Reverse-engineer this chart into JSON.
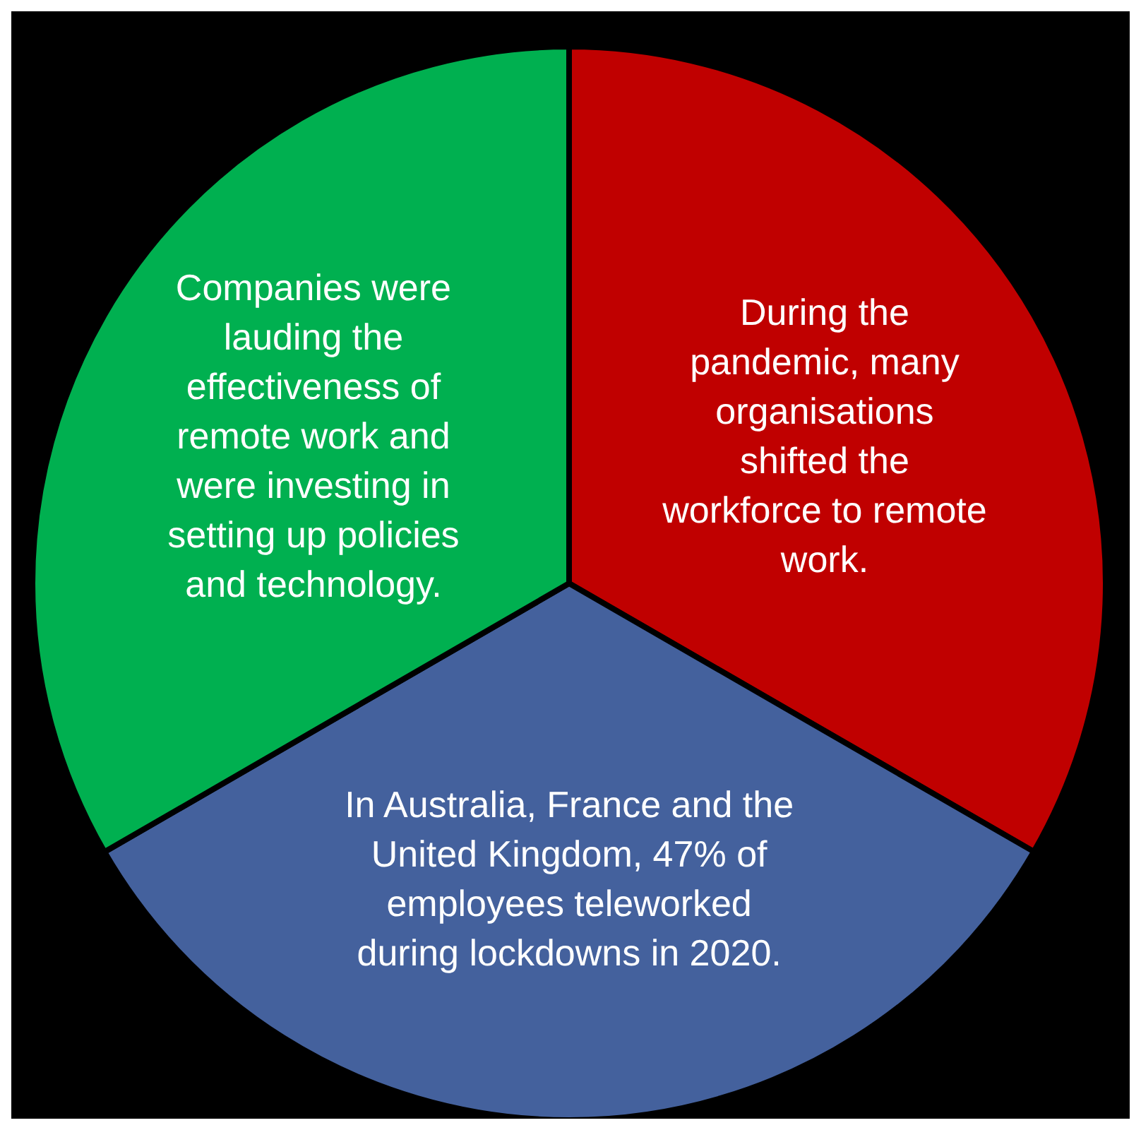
{
  "chart_data": {
    "type": "pie",
    "categories": [
      "During the pandemic, many organisations shifted the workforce to remote work.",
      "In Australia, France and the United Kingdom, 47% of employees teleworked during lockdowns in 2020.",
      "Companies were lauding the effectiveness of remote work and were investing in setting up policies and technology."
    ],
    "values": [
      33.33,
      33.33,
      33.34
    ],
    "colors": [
      "#c00000",
      "#44619d",
      "#00b050"
    ]
  }
}
